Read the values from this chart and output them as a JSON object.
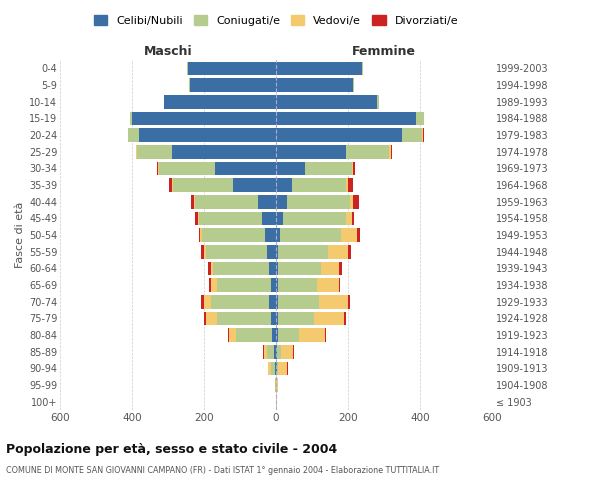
{
  "age_groups": [
    "100+",
    "95-99",
    "90-94",
    "85-89",
    "80-84",
    "75-79",
    "70-74",
    "65-69",
    "60-64",
    "55-59",
    "50-54",
    "45-49",
    "40-44",
    "35-39",
    "30-34",
    "25-29",
    "20-24",
    "15-19",
    "10-14",
    "5-9",
    "0-4"
  ],
  "birth_years": [
    "≤ 1903",
    "1904-1908",
    "1909-1913",
    "1914-1918",
    "1919-1923",
    "1924-1928",
    "1929-1933",
    "1934-1938",
    "1939-1943",
    "1944-1948",
    "1949-1953",
    "1954-1958",
    "1959-1963",
    "1964-1968",
    "1969-1973",
    "1974-1978",
    "1979-1983",
    "1984-1988",
    "1989-1993",
    "1994-1998",
    "1999-2003"
  ],
  "male": {
    "single": [
      0,
      0,
      3,
      5,
      10,
      15,
      20,
      15,
      20,
      25,
      30,
      40,
      50,
      120,
      170,
      290,
      380,
      400,
      310,
      240,
      245
    ],
    "married": [
      1,
      2,
      10,
      20,
      100,
      150,
      160,
      150,
      155,
      170,
      175,
      175,
      175,
      165,
      155,
      95,
      30,
      5,
      2,
      2,
      2
    ],
    "widowed": [
      0,
      0,
      8,
      8,
      20,
      30,
      20,
      15,
      5,
      5,
      5,
      3,
      3,
      3,
      3,
      3,
      0,
      0,
      0,
      0,
      0
    ],
    "divorced": [
      0,
      0,
      0,
      2,
      2,
      5,
      8,
      5,
      8,
      8,
      5,
      8,
      8,
      8,
      3,
      2,
      2,
      0,
      0,
      0,
      0
    ]
  },
  "female": {
    "single": [
      1,
      1,
      3,
      3,
      5,
      5,
      5,
      5,
      5,
      5,
      10,
      20,
      30,
      45,
      80,
      195,
      350,
      390,
      280,
      215,
      240
    ],
    "married": [
      0,
      0,
      3,
      10,
      60,
      100,
      115,
      110,
      120,
      140,
      170,
      175,
      175,
      150,
      130,
      120,
      55,
      20,
      5,
      3,
      3
    ],
    "widowed": [
      2,
      5,
      25,
      35,
      70,
      85,
      80,
      60,
      50,
      55,
      45,
      15,
      10,
      5,
      5,
      5,
      3,
      0,
      0,
      0,
      0
    ],
    "divorced": [
      0,
      0,
      2,
      2,
      3,
      5,
      5,
      3,
      8,
      8,
      8,
      8,
      15,
      15,
      5,
      3,
      2,
      0,
      0,
      0,
      0
    ]
  },
  "colors": {
    "single": "#3a6ea5",
    "married": "#b5cc8e",
    "widowed": "#f5c96e",
    "divorced": "#cc2222"
  },
  "xlim": 600,
  "title": "Popolazione per età, sesso e stato civile - 2004",
  "subtitle": "COMUNE DI MONTE SAN GIOVANNI CAMPANO (FR) - Dati ISTAT 1° gennaio 2004 - Elaborazione TUTTITALIA.IT",
  "ylabel_left": "Fasce di età",
  "header_left": "Maschi",
  "header_right": "Femmine",
  "legend_labels": [
    "Celibi/Nubili",
    "Coniugati/e",
    "Vedovi/e",
    "Divorziati/e"
  ],
  "legend_colors": [
    "#3a6ea5",
    "#b5cc8e",
    "#f5c96e",
    "#cc2222"
  ]
}
